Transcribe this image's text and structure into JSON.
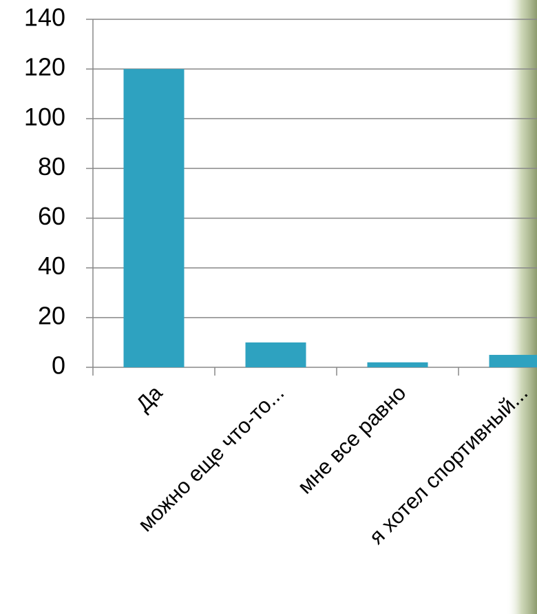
{
  "chart_data": {
    "type": "bar",
    "categories": [
      "Да",
      "можно еще что-то...",
      "мне все равно",
      "я хотел спортивный..."
    ],
    "values": [
      120,
      10,
      2,
      5
    ],
    "color": "#2ea2c0",
    "ylim": [
      0,
      140
    ],
    "yticks": [
      0,
      20,
      40,
      60,
      80,
      100,
      120,
      140
    ],
    "grid": true
  }
}
